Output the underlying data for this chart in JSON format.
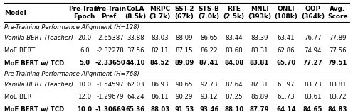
{
  "col_labels": [
    "Model",
    "Pre-Train\nEpoch",
    "Pre-Train\nPref.",
    "CoLA\n(8.5k)",
    "MRPC\n(3.7k)",
    "SST-2\n(67k)",
    "STS-B\n(7.0k)",
    "RTE\n(2.5k)",
    "MNLI\n(393k)",
    "QNLI\n(108k)",
    "QQP\n(364k)",
    "Avg.\nScore"
  ],
  "section1_title": "Pre-Training Performance Alignment (H=128)",
  "section2_title": "Pre-Training Performance Alignment (H=768)",
  "s1_rows": [
    [
      "Vanilla BERT (Teacher)",
      "20.0",
      "-2.65387",
      "33.88",
      "83.03",
      "88.09",
      "86.65",
      "83.44",
      "83.39",
      "63.41",
      "76.77",
      "77.89"
    ],
    [
      "MoE BERT",
      "6.0",
      "-2.32278",
      "37.56",
      "82.11",
      "87.15",
      "86.22",
      "83.68",
      "83.31",
      "62.86",
      "74.94",
      "77.56"
    ],
    [
      "MoE BERT w/ TCD",
      "5.0",
      "-2.33650",
      "44.10",
      "84.52",
      "89.09",
      "87.41",
      "84.08",
      "83.81",
      "65.70",
      "77.27",
      "79.51"
    ]
  ],
  "s2_rows": [
    [
      "Vanilla BERT (Teacher)",
      "10.0",
      "-1.54597",
      "62.03",
      "86.93",
      "90.65",
      "92.73",
      "87.64",
      "87.31",
      "61.97",
      "83.73",
      "83.81"
    ],
    [
      "MoE BERT",
      "12.0",
      "-1.29679",
      "64.24",
      "86.11",
      "90.29",
      "93.12",
      "87.25",
      "86.89",
      "61.73",
      "83.61",
      "83.72"
    ],
    [
      "MoE BERT w/ TCD",
      "10.0",
      "-1.30669",
      "65.36",
      "88.03",
      "91.53",
      "93.46",
      "88.10",
      "87.79",
      "64.14",
      "84.65",
      "84.83"
    ]
  ],
  "s1_bold_row": 2,
  "s2_bold_row": 2,
  "italic_model_rows": [
    0,
    0
  ],
  "bg_color": "#ffffff",
  "line_color": "#000000",
  "header_fontsize": 6.5,
  "body_fontsize": 6.2,
  "section_fontsize": 6.0
}
